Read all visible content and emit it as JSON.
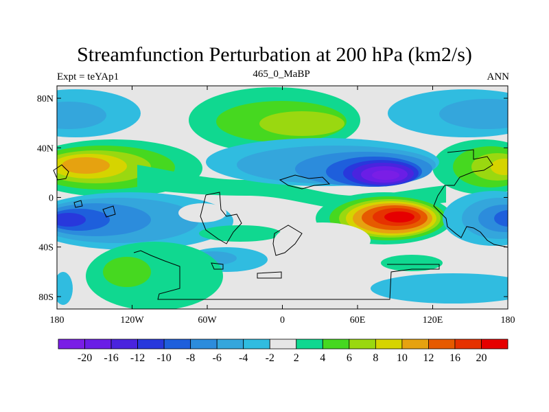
{
  "title": "Streamfunction Perturbation at 200 hPa (km2/s)",
  "subtitle": {
    "left": "Expt = teYAp1",
    "center": "465_0_MaBP",
    "right": "ANN"
  },
  "map": {
    "lon_range": [
      -180,
      180
    ],
    "lat_range": [
      -90,
      90
    ],
    "background_color": "#e6e6e6",
    "lat_ticks": [
      {
        "value": 80,
        "label": "80N"
      },
      {
        "value": 40,
        "label": "40N"
      },
      {
        "value": 0,
        "label": "0"
      },
      {
        "value": -40,
        "label": "40S"
      },
      {
        "value": -80,
        "label": "80S"
      }
    ],
    "lon_ticks": [
      {
        "value": -180,
        "label": "180"
      },
      {
        "value": -120,
        "label": "120W"
      },
      {
        "value": -60,
        "label": "60W"
      },
      {
        "value": 0,
        "label": "0"
      },
      {
        "value": 60,
        "label": "60E"
      },
      {
        "value": 120,
        "label": "120E"
      },
      {
        "value": 180,
        "label": "180"
      }
    ]
  },
  "colorbar": {
    "levels": [
      -20,
      -16,
      -12,
      -10,
      -8,
      -6,
      -4,
      -2,
      2,
      4,
      6,
      8,
      10,
      12,
      16,
      20
    ],
    "colors": [
      "#7a1ee6",
      "#6a1ee6",
      "#4a24de",
      "#2838dc",
      "#1e5fdc",
      "#2c8cdc",
      "#34a6dc",
      "#30bce0",
      "#e6e6e6",
      "#10d890",
      "#46d820",
      "#9ad810",
      "#d6d400",
      "#e6a210",
      "#e65a00",
      "#e63200",
      "#e60000"
    ]
  },
  "chart_data": {
    "type": "heatmap",
    "title": "Streamfunction Perturbation at 200 hPa (km2/s)",
    "variable": "Streamfunction perturbation",
    "units": "km2/s",
    "level": "200 hPa",
    "xlabel": "",
    "ylabel": "",
    "xlim": [
      -180,
      180
    ],
    "ylim": [
      -90,
      90
    ],
    "features": [
      {
        "lon": 10,
        "lat": 57,
        "value": 7,
        "note": "positive center north Atlantic/Europe"
      },
      {
        "lon": 85,
        "lat": 18,
        "value": -20,
        "note": "strongest negative center"
      },
      {
        "lon": 88,
        "lat": -17,
        "value": 17,
        "note": "strongest positive center"
      },
      {
        "lon": -148,
        "lat": 22,
        "value": 10,
        "note": "positive center central Pacific"
      },
      {
        "lon": -168,
        "lat": -18,
        "value": -12,
        "note": "negative center southwest Pacific"
      },
      {
        "lon": 178,
        "lat": 22,
        "value": 10,
        "note": "positive center west Pacific"
      },
      {
        "lon": 178,
        "lat": -20,
        "value": -12,
        "note": "negative center west Pacific"
      },
      {
        "lon": -135,
        "lat": -58,
        "value": 6,
        "note": "positive center South Pacific"
      },
      {
        "lon": 150,
        "lat": 60,
        "value": -6,
        "note": "negative center north Pacific"
      },
      {
        "lon": -165,
        "lat": 68,
        "value": -6,
        "note": "negative center Arctic"
      }
    ]
  }
}
